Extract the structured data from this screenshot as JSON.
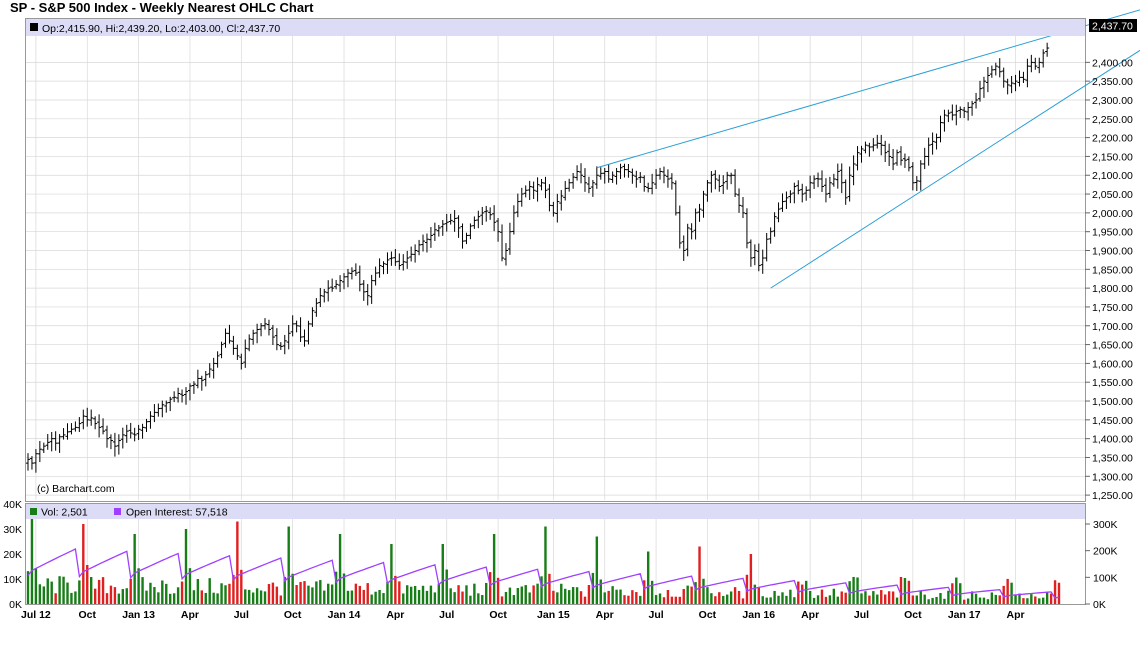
{
  "title": "SP - S&P 500 Index - Weekly Nearest OHLC Chart",
  "colors": {
    "bar": "#000000",
    "trendline": "#2a9fd6",
    "header_band": "#dcdcf6",
    "vol_up": "#177d17",
    "vol_down": "#e02020",
    "open_interest": "#a040ff",
    "last_price_box": "#000000",
    "grid": "#d8d8d8"
  },
  "price_header": {
    "text": "Op:2,415.90, Hi:2,439.20, Lo:2,403.00, Cl:2,437.70"
  },
  "watermark": "(c) Barchart.com",
  "last_price_label": "2,437.70",
  "volume_header": {
    "vol_text": "Vol: 2,501",
    "oi_text": "Open Interest: 57,518",
    "vol_icon": "green-square-icon",
    "oi_icon": "purple-square-icon"
  },
  "chart_data": [
    {
      "type": "ohlc",
      "period": "weekly",
      "y_axis": {
        "range": [
          1237,
          2470
        ],
        "ticks": [
          1250,
          1300,
          1350,
          1400,
          1450,
          1500,
          1550,
          1600,
          1650,
          1700,
          1750,
          1800,
          1850,
          1900,
          1950,
          2000,
          2050,
          2100,
          2150,
          2200,
          2250,
          2300,
          2350,
          2400
        ],
        "tick_labels": [
          "1,250.00",
          "1,300.00",
          "1,350.00",
          "1,400.00",
          "1,450.00",
          "1,500.00",
          "1,550.00",
          "1,600.00",
          "1,650.00",
          "1,700.00",
          "1,750.00",
          "1,800.00",
          "1,850.00",
          "1,900.00",
          "1,950.00",
          "2,000.00",
          "2,050.00",
          "2,100.00",
          "2,150.00",
          "2,200.00",
          "2,250.00",
          "2,300.00",
          "2,350.00",
          "2,400.00"
        ],
        "side": "right",
        "grid": true
      },
      "x_axis": {
        "labels": [
          "Jul 12",
          "Oct",
          "Jan 13",
          "Apr",
          "Jul",
          "Oct",
          "Jan 14",
          "Apr",
          "Jul",
          "Oct",
          "Jan 15",
          "Apr",
          "Jul",
          "Oct",
          "Jan 16",
          "Apr",
          "Jul",
          "Oct",
          "Jan 17",
          "Apr"
        ],
        "label_weeks": [
          2,
          15,
          28,
          41,
          54,
          67,
          80,
          93,
          106,
          119,
          133,
          146,
          159,
          172,
          185,
          198,
          211,
          224,
          237,
          250
        ],
        "weeks_total": 262
      },
      "closes": [
        1345,
        1335,
        1360,
        1372,
        1380,
        1390,
        1400,
        1388,
        1405,
        1410,
        1418,
        1425,
        1430,
        1440,
        1460,
        1450,
        1455,
        1440,
        1430,
        1420,
        1400,
        1395,
        1380,
        1395,
        1410,
        1420,
        1415,
        1410,
        1425,
        1430,
        1445,
        1460,
        1470,
        1480,
        1490,
        1495,
        1505,
        1510,
        1520,
        1515,
        1525,
        1540,
        1545,
        1560,
        1555,
        1570,
        1585,
        1600,
        1620,
        1650,
        1680,
        1660,
        1640,
        1620,
        1600,
        1640,
        1665,
        1680,
        1690,
        1700,
        1705,
        1690,
        1670,
        1650,
        1645,
        1660,
        1680,
        1705,
        1700,
        1670,
        1660,
        1705,
        1740,
        1760,
        1780,
        1790,
        1800,
        1800,
        1810,
        1820,
        1830,
        1840,
        1845,
        1840,
        1810,
        1790,
        1780,
        1820,
        1840,
        1860,
        1865,
        1875,
        1880,
        1870,
        1860,
        1870,
        1880,
        1890,
        1900,
        1915,
        1925,
        1930,
        1940,
        1955,
        1960,
        1970,
        1975,
        1980,
        1985,
        1960,
        1925,
        1940,
        1965,
        1980,
        1990,
        2000,
        2005,
        1995,
        1975,
        1950,
        1880,
        1900,
        1950,
        2000,
        2030,
        2050,
        2060,
        2070,
        2060,
        2075,
        2080,
        2060,
        2020,
        2000,
        2030,
        2045,
        2065,
        2080,
        2095,
        2110,
        2100,
        2080,
        2065,
        2080,
        2100,
        2105,
        2110,
        2090,
        2100,
        2110,
        2120,
        2115,
        2110,
        2100,
        2090,
        2095,
        2070,
        2065,
        2080,
        2100,
        2110,
        2100,
        2090,
        2080,
        2000,
        1920,
        1900,
        1960,
        1950,
        2000,
        2010,
        2050,
        2080,
        2100,
        2090,
        2070,
        2080,
        2100,
        2100,
        2050,
        2020,
        2000,
        1920,
        1880,
        1900,
        1860,
        1880,
        1930,
        1950,
        1990,
        2010,
        2030,
        2040,
        2050,
        2070,
        2060,
        2050,
        2060,
        2080,
        2090,
        2090,
        2070,
        2050,
        2080,
        2090,
        2110,
        2080,
        2040,
        2100,
        2130,
        2160,
        2170,
        2180,
        2175,
        2180,
        2185,
        2180,
        2160,
        2150,
        2130,
        2160,
        2140,
        2140,
        2120,
        2080,
        2085,
        2130,
        2150,
        2180,
        2190,
        2200,
        2240,
        2260,
        2265,
        2260,
        2270,
        2275,
        2270,
        2280,
        2290,
        2300,
        2330,
        2350,
        2365,
        2380,
        2390,
        2375,
        2350,
        2340,
        2345,
        2350,
        2360,
        2355,
        2390,
        2400,
        2390,
        2400,
        2425,
        2438
      ]
    },
    {
      "type": "bar",
      "name": "Vol",
      "y_axis": {
        "range": [
          0,
          40000
        ],
        "ticks": [
          0,
          10000,
          20000,
          30000,
          40000
        ],
        "tick_labels": [
          "0K",
          "10K",
          "20K",
          "30K",
          "40K"
        ],
        "side": "left"
      },
      "spikes": [
        {
          "week": 1,
          "value": 34000,
          "up": true
        },
        {
          "week": 14,
          "value": 32000,
          "up": false
        },
        {
          "week": 27,
          "value": 28000,
          "up": true
        },
        {
          "week": 40,
          "value": 30000,
          "up": true
        },
        {
          "week": 53,
          "value": 33000,
          "up": false
        },
        {
          "week": 66,
          "value": 31000,
          "up": true
        },
        {
          "week": 79,
          "value": 28000,
          "up": true
        },
        {
          "week": 92,
          "value": 24000,
          "up": true
        },
        {
          "week": 105,
          "value": 24000,
          "up": true
        },
        {
          "week": 118,
          "value": 28000,
          "up": true
        },
        {
          "week": 131,
          "value": 31000,
          "up": true
        },
        {
          "week": 144,
          "value": 27000,
          "up": true
        },
        {
          "week": 157,
          "value": 21000,
          "up": true
        },
        {
          "week": 170,
          "value": 23000,
          "up": false
        },
        {
          "week": 183,
          "value": 20000,
          "up": false
        }
      ]
    },
    {
      "type": "line",
      "name": "Open Interest",
      "y_axis": {
        "range": [
          0,
          300000
        ],
        "ticks": [
          0,
          100000,
          200000,
          300000
        ],
        "tick_labels": [
          "0K",
          "100K",
          "200K",
          "300K"
        ],
        "side": "right"
      }
    }
  ],
  "trendlines": [
    {
      "from": {
        "week": 144,
        "price": 2120
      },
      "to": {
        "week": 262,
        "price": 2480
      }
    },
    {
      "from": {
        "week": 188,
        "price": 1800
      },
      "to": {
        "week": 262,
        "price": 2300
      }
    }
  ]
}
